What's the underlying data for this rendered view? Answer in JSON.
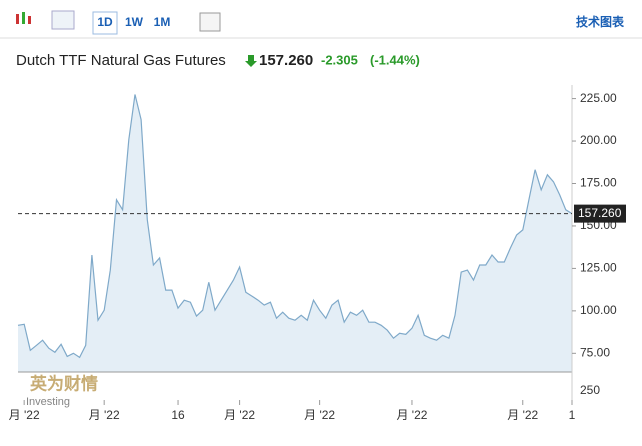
{
  "toolbar": {
    "buttons": [
      "1D",
      "1W",
      "1M"
    ],
    "link": "技术图表"
  },
  "header": {
    "title": "Dutch TTF Natural Gas Futures",
    "price": "157.260",
    "change": "-2.305",
    "change_pct": "(-1.44%)"
  },
  "watermark": {
    "brand": "英为财情",
    "site": "Investing"
  },
  "chart_data": {
    "type": "area",
    "color": "#7fa9c9",
    "fill": "#e4eef6",
    "values": [
      91.5,
      92.1,
      76.8,
      79.7,
      82.7,
      78,
      75.6,
      80.3,
      73.2,
      75,
      72.6,
      79.7,
      132.9,
      94.5,
      100.4,
      124,
      165.4,
      159.5,
      200.8,
      227.4,
      212.6,
      153.6,
      127,
      131.1,
      112.2,
      112.2,
      101.6,
      106.3,
      105.1,
      96.9,
      100.4,
      116.9,
      100.4,
      106.3,
      112.2,
      118.1,
      125.8,
      111,
      108.7,
      106.3,
      103.4,
      105.1,
      95.7,
      99.2,
      95.7,
      94.5,
      97.4,
      94.5,
      106.3,
      100.4,
      95.7,
      103.4,
      106.3,
      93.3,
      99.2,
      97.4,
      100.4,
      93.3,
      93.3,
      91.5,
      88.6,
      83.9,
      86.8,
      86.2,
      89.8,
      97.4,
      85.6,
      83.9,
      82.7,
      85.6,
      83.9,
      97.4,
      122.8,
      124,
      118.1,
      127,
      127,
      132.9,
      128.8,
      128.8,
      137,
      144.7,
      147.7,
      165.4,
      183.1,
      171.3,
      180.1,
      176,
      168.3,
      159.5,
      157.26
    ],
    "xlim": [
      0,
      90
    ],
    "xticks": [
      {
        "value": 1,
        "label": "月 '22"
      },
      {
        "value": 14,
        "label": "月 '22"
      },
      {
        "value": 26,
        "label": "16"
      },
      {
        "value": 36,
        "label": "月 '22"
      },
      {
        "value": 49,
        "label": "月 '22"
      },
      {
        "value": 64,
        "label": "月 '22"
      },
      {
        "value": 82,
        "label": "月 '22"
      },
      {
        "value": 90,
        "label": "1"
      }
    ],
    "ylim": [
      64,
      233
    ],
    "yticks": [
      {
        "value": 75,
        "label": "75.00"
      },
      {
        "value": 100,
        "label": "100.00"
      },
      {
        "value": 125,
        "label": "125.00"
      },
      {
        "value": 150,
        "label": "150.00"
      },
      {
        "value": 175,
        "label": "175.00"
      },
      {
        "value": 200,
        "label": "200.00"
      },
      {
        "value": 225,
        "label": "225.00"
      }
    ],
    "last_value": {
      "value": 157.26,
      "label": "157.260"
    },
    "volume_ticks": [
      250
    ]
  }
}
